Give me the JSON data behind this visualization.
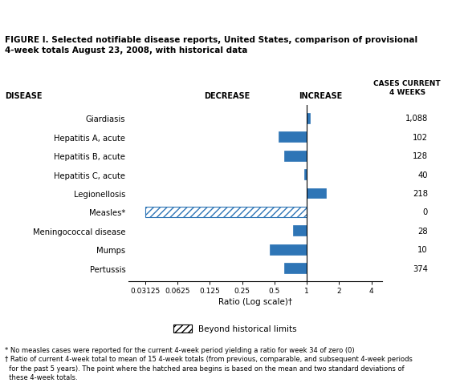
{
  "title_line1": "FIGURE I. Selected notifiable disease reports, United States, comparison of provisional",
  "title_line2": "4-week totals August 23, 2008, with historical data",
  "diseases": [
    "Giardiasis",
    "Hepatitis A, acute",
    "Hepatitis B, acute",
    "Hepatitis C, acute",
    "Legionellosis",
    "Measles*",
    "Meningococcal disease",
    "Mumps",
    "Pertussis"
  ],
  "cases": [
    "1,088",
    "102",
    "128",
    "40",
    "218",
    "0",
    "28",
    "10",
    "374"
  ],
  "bar_left": [
    1.0,
    0.55,
    0.62,
    0.95,
    1.0,
    0.03125,
    0.75,
    0.45,
    0.62
  ],
  "bar_right": [
    1.07,
    1.0,
    1.0,
    1.0,
    1.5,
    1.0,
    1.0,
    1.0,
    1.0
  ],
  "is_hatched": [
    false,
    false,
    false,
    false,
    false,
    true,
    false,
    false,
    false
  ],
  "bar_color": "#2E75B6",
  "xlabel": "Ratio (Log scale)†",
  "xticks": [
    0.03125,
    0.0625,
    0.125,
    0.25,
    0.5,
    1.0,
    2.0,
    4.0
  ],
  "xtick_labels": [
    "0.03125",
    "0.0625",
    "0.125",
    "0.25",
    "0.5",
    "1",
    "2",
    "4"
  ],
  "xlim_left": 0.022,
  "xlim_right": 5.0,
  "decrease_label": "DECREASE",
  "increase_label": "INCREASE",
  "disease_label": "DISEASE",
  "cases_label": "CASES CURRENT\n4 WEEKS",
  "footnote1": "* No measles cases were reported for the current 4-week period yielding a ratio for week 34 of zero (0)",
  "footnote2": "† Ratio of current 4-week total to mean of 15 4-week totals (from previous, comparable, and subsequent 4-week periods",
  "footnote3": "  for the past 5 years). The point where the hatched area begins is based on the mean and two standard deviations of",
  "footnote4": "  these 4-week totals.",
  "legend_label": "Beyond historical limits",
  "bg_color": "#FFFFFF"
}
